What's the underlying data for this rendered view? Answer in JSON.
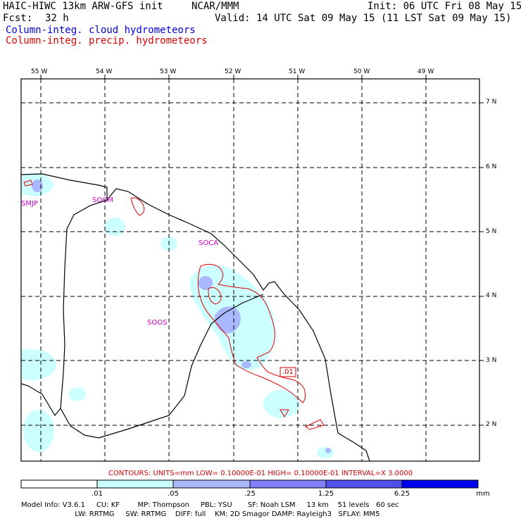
{
  "header": {
    "model": "HAIC-HIWC 13km ARW-GFS init",
    "org": "NCAR/MMM",
    "init": "Init: 06 UTC Fri 08 May 15",
    "fcst_label": "Fcst:",
    "fcst_value": "32 h",
    "valid": "Valid: 14 UTC Sat 09 May 15 (11 LST Sat 09 May 15)",
    "field_cloud": "Column-integ. cloud hydrometeors",
    "field_precip": "Column-integ. precip. hydrometeors"
  },
  "axes": {
    "longitudes": [
      "55 W",
      "54 W",
      "53 W",
      "52 W",
      "51 W",
      "50 W",
      "49 W"
    ],
    "latitudes": [
      "7 N",
      "6 N",
      "5 N",
      "4 N",
      "3 N",
      "2 N"
    ]
  },
  "stations": [
    "SMJP",
    "SOCM",
    "SOCA",
    "SOOS"
  ],
  "contour_label": ".01",
  "contours_line": "CONTOURS:  UNITS=mm  LOW= 0.10000E-01  HIGH= 0.10000E-01  INTERVAL=X  3.0000",
  "colorbar": {
    "colors": [
      "#ffffff",
      "#ccffff",
      "#aab8ff",
      "#8080ff",
      "#5050ee",
      "#0000ee"
    ],
    "ticks": [
      ".01",
      ".05",
      ".25",
      "1.25",
      "6.25"
    ],
    "units": "mm"
  },
  "model_info": {
    "line1": "Model Info: V3.6.1     CU: KF        MP: Thompson     PBL: YSU       SF: Noah LSM     13 km    51 levels   60 sec",
    "line2": "                        LW: RRTMG     SW: RRTMG    DIFF: full    KM: 2D Smagor DAMP: Rayleigh3   SFLAY: MM5"
  },
  "colors": {
    "cloud_light": "#ccffff",
    "cloud_med": "#aab8ff",
    "precip_contour": "#dd0000",
    "station": "#cc00cc"
  }
}
